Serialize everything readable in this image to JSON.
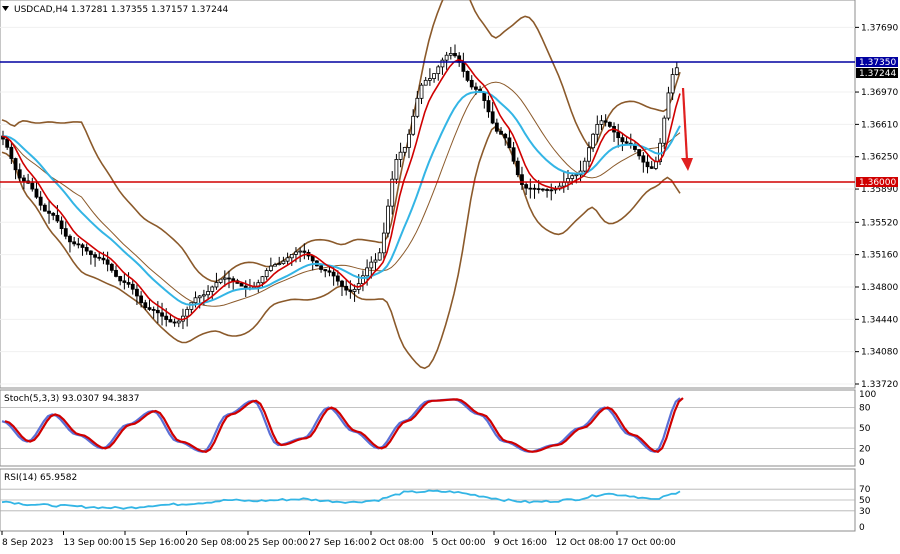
{
  "symbol_header": "USDCAD,H4  1.37281 1.37355 1.37157 1.37244",
  "price_axis_labels": [
    "1.37690",
    "1.36970",
    "1.36610",
    "1.36250",
    "1.35890",
    "1.35520",
    "1.35160",
    "1.34800",
    "1.34440",
    "1.34080",
    "1.33720"
  ],
  "price_tags": {
    "resistance": "1.37350",
    "current": "1.37244",
    "support": "1.36000"
  },
  "time_axis_labels": [
    "8 Sep 2023",
    "13 Sep 00:00",
    "15 Sep 16:00",
    "20 Sep 08:00",
    "25 Sep 00:00",
    "27 Sep 16:00",
    "2 Oct 08:00",
    "5 Oct 00:00",
    "9 Oct 16:00",
    "12 Oct 08:00",
    "17 Oct 00:00"
  ],
  "stoch": {
    "header": "Stoch(5,3,3) 93.0307 94.3837",
    "levels": [
      "100",
      "80",
      "50",
      "20",
      "0"
    ]
  },
  "rsi": {
    "header": "RSI(14) 65.9582",
    "levels": [
      "70",
      "50",
      "30",
      "0"
    ]
  },
  "colors": {
    "resistance_line": "#0000a0",
    "support_line": "#d00000",
    "bollinger": "#8b5a2b",
    "ema_fast": "#d00000",
    "ema_slow": "#33b5e5",
    "stoch_main": "#5b6fd6",
    "stoch_signal": "#d00000",
    "rsi": "#33b5e5",
    "arrow": "#e02020",
    "candle": "#000000"
  },
  "chart_data": [
    {
      "type": "line",
      "title": "USDCAD,H4",
      "x": [
        0,
        5,
        10,
        15,
        20,
        25,
        30,
        35,
        40,
        45,
        50,
        55,
        60,
        65,
        70,
        75,
        80,
        85,
        90,
        95,
        100,
        105,
        110,
        115,
        120,
        125,
        130,
        135
      ],
      "x_tick_labels": [
        "8 Sep 2023",
        "13 Sep 00:00",
        "15 Sep 16:00",
        "20 Sep 08:00",
        "25 Sep 00:00",
        "27 Sep 16:00",
        "2 Oct 08:00",
        "5 Oct 00:00",
        "9 Oct 16:00",
        "12 Oct 08:00",
        "17 Oct 00:00"
      ],
      "series": [
        {
          "values": [
            1.3648,
            1.3598,
            1.3562,
            1.3528,
            1.3512,
            1.3485,
            1.3455,
            1.344,
            1.347,
            1.349,
            1.3478,
            1.3505,
            1.352,
            1.3498,
            1.3475,
            1.351,
            1.363,
            1.371,
            1.374,
            1.37,
            1.365,
            1.359,
            1.3588,
            1.3605,
            1.3665,
            1.364,
            1.3612,
            1.3724
          ]
        }
      ],
      "ylim": [
        1.3372,
        1.3795
      ],
      "horizontal_levels": [
        1.3735,
        1.36
      ],
      "grid": true
    },
    {
      "type": "line",
      "title": "Stoch(5,3,3) 93.0307 94.3837",
      "series": [
        {
          "values": [
            60,
            30,
            70,
            40,
            20,
            55,
            75,
            30,
            15,
            70,
            90,
            25,
            35,
            80,
            45,
            20,
            60,
            90,
            92,
            70,
            30,
            15,
            25,
            50,
            80,
            40,
            15,
            94
          ]
        }
      ],
      "ylim": [
        0,
        100
      ],
      "levels": [
        80,
        50,
        20
      ]
    },
    {
      "type": "line",
      "title": "RSI(14) 65.9582",
      "series": [
        {
          "values": [
            48,
            42,
            40,
            38,
            36,
            35,
            40,
            42,
            45,
            50,
            48,
            50,
            52,
            48,
            46,
            50,
            64,
            66,
            65,
            58,
            50,
            46,
            48,
            52,
            62,
            58,
            50,
            66
          ]
        }
      ],
      "ylim": [
        0,
        100
      ],
      "levels": [
        70,
        50,
        30
      ]
    }
  ]
}
